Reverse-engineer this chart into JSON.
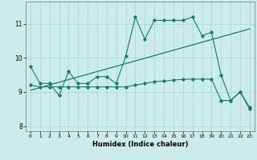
{
  "xlabel": "Humidex (Indice chaleur)",
  "bg_color": "#ccecea",
  "grid_color": "#aaddda",
  "line_color": "#1a7a6e",
  "xlim": [
    -0.5,
    23.5
  ],
  "ylim": [
    7.85,
    11.65
  ],
  "yticks": [
    8,
    9,
    10,
    11
  ],
  "xticks": [
    0,
    1,
    2,
    3,
    4,
    5,
    6,
    7,
    8,
    9,
    10,
    11,
    12,
    13,
    14,
    15,
    16,
    17,
    18,
    19,
    20,
    21,
    22,
    23
  ],
  "curve1_x": [
    0,
    1,
    2,
    3,
    4,
    5,
    6,
    7,
    8,
    9,
    10,
    11,
    12,
    13,
    14,
    15,
    16,
    17,
    18,
    19,
    20,
    21,
    22,
    23
  ],
  "curve1_y": [
    9.75,
    9.25,
    9.25,
    8.9,
    9.6,
    9.25,
    9.25,
    9.45,
    9.45,
    9.25,
    10.05,
    11.2,
    10.55,
    11.1,
    11.1,
    11.1,
    11.1,
    11.2,
    10.65,
    10.75,
    9.5,
    8.75,
    9.0,
    8.55
  ],
  "curve2_x": [
    0,
    1,
    2,
    3,
    4,
    5,
    6,
    7,
    8,
    9,
    10,
    11,
    12,
    13,
    14,
    15,
    16,
    17,
    18,
    19,
    20,
    21,
    22,
    23
  ],
  "curve2_y": [
    9.2,
    9.15,
    9.15,
    9.15,
    9.15,
    9.15,
    9.15,
    9.15,
    9.15,
    9.15,
    9.15,
    9.2,
    9.25,
    9.3,
    9.32,
    9.35,
    9.37,
    9.38,
    9.38,
    9.38,
    8.75,
    8.75,
    9.0,
    8.5
  ],
  "curve3_x": [
    0,
    23
  ],
  "curve3_y": [
    9.05,
    10.85
  ]
}
